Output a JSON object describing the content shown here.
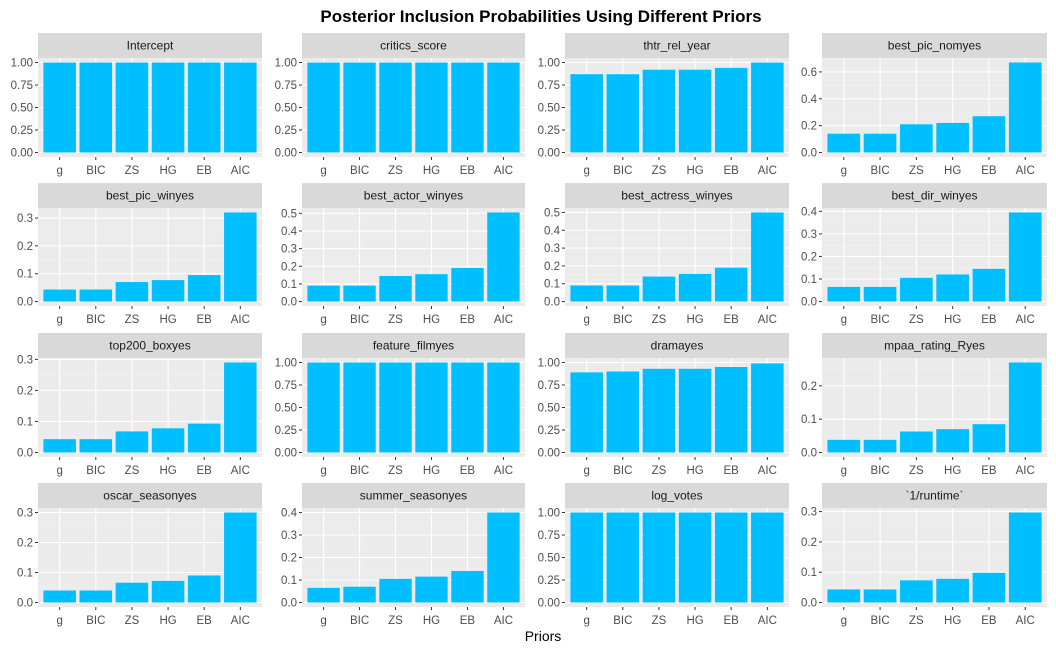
{
  "colors": {
    "bar": "#00BFFF",
    "panel": "#EBEBEB",
    "strip": "#D9D9D9",
    "grid_major": "#FFFFFF",
    "grid_minor": "#F3F3F3",
    "text": "#4D4D4D"
  },
  "chart_data": {
    "type": "bar",
    "title": "Posterior Inclusion Probabilities Using Different Priors",
    "xlabel": "Priors",
    "ylabel": "",
    "categories": [
      "g",
      "BIC",
      "ZS",
      "HG",
      "EB",
      "AIC"
    ],
    "grid": true,
    "panels": [
      {
        "name": "Intercept",
        "values": [
          1,
          1,
          1,
          1,
          1,
          1
        ],
        "ylim": [
          0,
          1.0
        ],
        "yticks": [
          0,
          0.25,
          0.5,
          0.75,
          1.0
        ],
        "yticklabels": [
          "0.00",
          "0.25",
          "0.50",
          "0.75",
          "1.00"
        ]
      },
      {
        "name": "critics_score",
        "values": [
          1,
          1,
          1,
          1,
          1,
          1
        ],
        "ylim": [
          0,
          1.0
        ],
        "yticks": [
          0,
          0.25,
          0.5,
          0.75,
          1.0
        ],
        "yticklabels": [
          "0.00",
          "0.25",
          "0.50",
          "0.75",
          "1.00"
        ]
      },
      {
        "name": "thtr_rel_year",
        "values": [
          0.87,
          0.87,
          0.92,
          0.92,
          0.94,
          1.0
        ],
        "ylim": [
          0,
          1.0
        ],
        "yticks": [
          0,
          0.25,
          0.5,
          0.75,
          1.0
        ],
        "yticklabels": [
          "0.00",
          "0.25",
          "0.50",
          "0.75",
          "1.00"
        ]
      },
      {
        "name": "best_pic_nomyes",
        "values": [
          0.14,
          0.14,
          0.21,
          0.22,
          0.27,
          0.67
        ],
        "ylim": [
          0,
          0.67
        ],
        "yticks": [
          0,
          0.2,
          0.4,
          0.6
        ],
        "yticklabels": [
          "0.0",
          "0.2",
          "0.4",
          "0.6"
        ]
      },
      {
        "name": "best_pic_winyes",
        "values": [
          0.043,
          0.043,
          0.07,
          0.077,
          0.095,
          0.32
        ],
        "ylim": [
          0,
          0.32
        ],
        "yticks": [
          0,
          0.1,
          0.2,
          0.3
        ],
        "yticklabels": [
          "0.0",
          "0.1",
          "0.2",
          "0.3"
        ]
      },
      {
        "name": "best_actor_winyes",
        "values": [
          0.09,
          0.09,
          0.145,
          0.155,
          0.19,
          0.505
        ],
        "ylim": [
          0,
          0.505
        ],
        "yticks": [
          0,
          0.1,
          0.2,
          0.3,
          0.4,
          0.5
        ],
        "yticklabels": [
          "0.0",
          "0.1",
          "0.2",
          "0.3",
          "0.4",
          "0.5"
        ]
      },
      {
        "name": "best_actress_winyes",
        "values": [
          0.09,
          0.09,
          0.14,
          0.155,
          0.19,
          0.5
        ],
        "ylim": [
          0,
          0.5
        ],
        "yticks": [
          0,
          0.1,
          0.2,
          0.3,
          0.4,
          0.5
        ],
        "yticklabels": [
          "0.0",
          "0.1",
          "0.2",
          "0.3",
          "0.4",
          "0.5"
        ]
      },
      {
        "name": "best_dir_winyes",
        "values": [
          0.065,
          0.065,
          0.105,
          0.12,
          0.145,
          0.395
        ],
        "ylim": [
          0,
          0.395
        ],
        "yticks": [
          0,
          0.1,
          0.2,
          0.3,
          0.4
        ],
        "yticklabels": [
          "0.0",
          "0.1",
          "0.2",
          "0.3",
          "0.4"
        ]
      },
      {
        "name": "top200_boxyes",
        "values": [
          0.043,
          0.043,
          0.068,
          0.078,
          0.093,
          0.29
        ],
        "ylim": [
          0,
          0.29
        ],
        "yticks": [
          0,
          0.1,
          0.2,
          0.3
        ],
        "yticklabels": [
          "0.0",
          "0.1",
          "0.2",
          "0.3"
        ]
      },
      {
        "name": "feature_filmyes",
        "values": [
          1,
          1,
          1,
          1,
          1,
          1
        ],
        "ylim": [
          0,
          1.0
        ],
        "yticks": [
          0,
          0.25,
          0.5,
          0.75,
          1.0
        ],
        "yticklabels": [
          "0.00",
          "0.25",
          "0.50",
          "0.75",
          "1.00"
        ]
      },
      {
        "name": "dramayes",
        "values": [
          0.89,
          0.9,
          0.93,
          0.93,
          0.95,
          0.99
        ],
        "ylim": [
          0,
          1.0
        ],
        "yticks": [
          0,
          0.25,
          0.5,
          0.75,
          1.0
        ],
        "yticklabels": [
          "0.00",
          "0.25",
          "0.50",
          "0.75",
          "1.00"
        ]
      },
      {
        "name": "mpaa_rating_Ryes",
        "values": [
          0.038,
          0.038,
          0.063,
          0.07,
          0.085,
          0.27
        ],
        "ylim": [
          0,
          0.27
        ],
        "yticks": [
          0,
          0.1,
          0.2
        ],
        "yticklabels": [
          "0.0",
          "0.1",
          "0.2"
        ]
      },
      {
        "name": "oscar_seasonyes",
        "values": [
          0.04,
          0.04,
          0.066,
          0.072,
          0.09,
          0.3
        ],
        "ylim": [
          0,
          0.3
        ],
        "yticks": [
          0,
          0.1,
          0.2,
          0.3
        ],
        "yticklabels": [
          "0.0",
          "0.1",
          "0.2",
          "0.3"
        ]
      },
      {
        "name": "summer_seasonyes",
        "values": [
          0.065,
          0.07,
          0.105,
          0.115,
          0.14,
          0.4
        ],
        "ylim": [
          0,
          0.4
        ],
        "yticks": [
          0,
          0.1,
          0.2,
          0.3,
          0.4
        ],
        "yticklabels": [
          "0.0",
          "0.1",
          "0.2",
          "0.3",
          "0.4"
        ]
      },
      {
        "name": "log_votes",
        "values": [
          1,
          1,
          1,
          1,
          1,
          1
        ],
        "ylim": [
          0,
          1.0
        ],
        "yticks": [
          0,
          0.25,
          0.5,
          0.75,
          1.0
        ],
        "yticklabels": [
          "0.00",
          "0.25",
          "0.50",
          "0.75",
          "1.00"
        ]
      },
      {
        "name": "`1/runtime`",
        "values": [
          0.043,
          0.043,
          0.073,
          0.078,
          0.098,
          0.297
        ],
        "ylim": [
          0,
          0.297
        ],
        "yticks": [
          0,
          0.1,
          0.2,
          0.3
        ],
        "yticklabels": [
          "0.0",
          "0.1",
          "0.2",
          "0.3"
        ]
      }
    ]
  }
}
